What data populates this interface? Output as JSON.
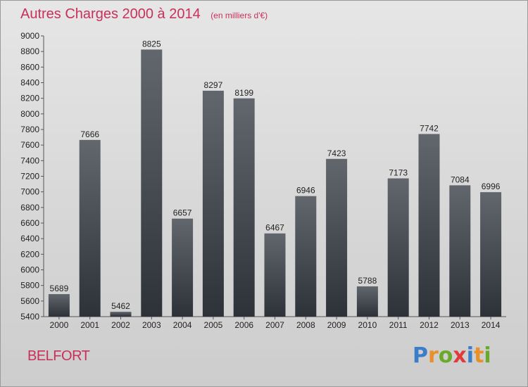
{
  "title": "Autres Charges 2000 à 2014",
  "subtitle": "(en milliers d'€)",
  "commune": "BELFORT",
  "logo": {
    "letters": [
      {
        "char": "P",
        "color": "#3a7dc8"
      },
      {
        "char": "r",
        "color": "#e8902a"
      },
      {
        "char": "o",
        "color": "#6aaa2a"
      },
      {
        "char": "x",
        "color": "#e03a3a"
      },
      {
        "char": "i",
        "color": "#3a7dc8"
      },
      {
        "char": "t",
        "color": "#e8902a"
      },
      {
        "char": "i",
        "color": "#6aaa2a"
      }
    ]
  },
  "colors": {
    "accent": "#c8305a",
    "bar_top": "#62676d",
    "bar_bottom": "#2d3238"
  },
  "chart_data": {
    "type": "bar",
    "title": "Autres Charges 2000 à 2014",
    "subtitle": "(en milliers d'€)",
    "categories": [
      "2000",
      "2001",
      "2002",
      "2003",
      "2004",
      "2005",
      "2006",
      "2007",
      "2008",
      "2009",
      "2010",
      "2011",
      "2012",
      "2013",
      "2014"
    ],
    "values": [
      5689,
      7666,
      5462,
      8825,
      6657,
      8297,
      8199,
      6467,
      6946,
      7423,
      5788,
      7173,
      7742,
      7084,
      6996
    ],
    "ylim": [
      5400,
      9000
    ],
    "yticks": [
      5400,
      5600,
      5800,
      6000,
      6200,
      6400,
      6600,
      6800,
      7000,
      7200,
      7400,
      7600,
      7800,
      8000,
      8200,
      8400,
      8600,
      8800,
      9000
    ],
    "grid": false,
    "data_labels": true
  }
}
